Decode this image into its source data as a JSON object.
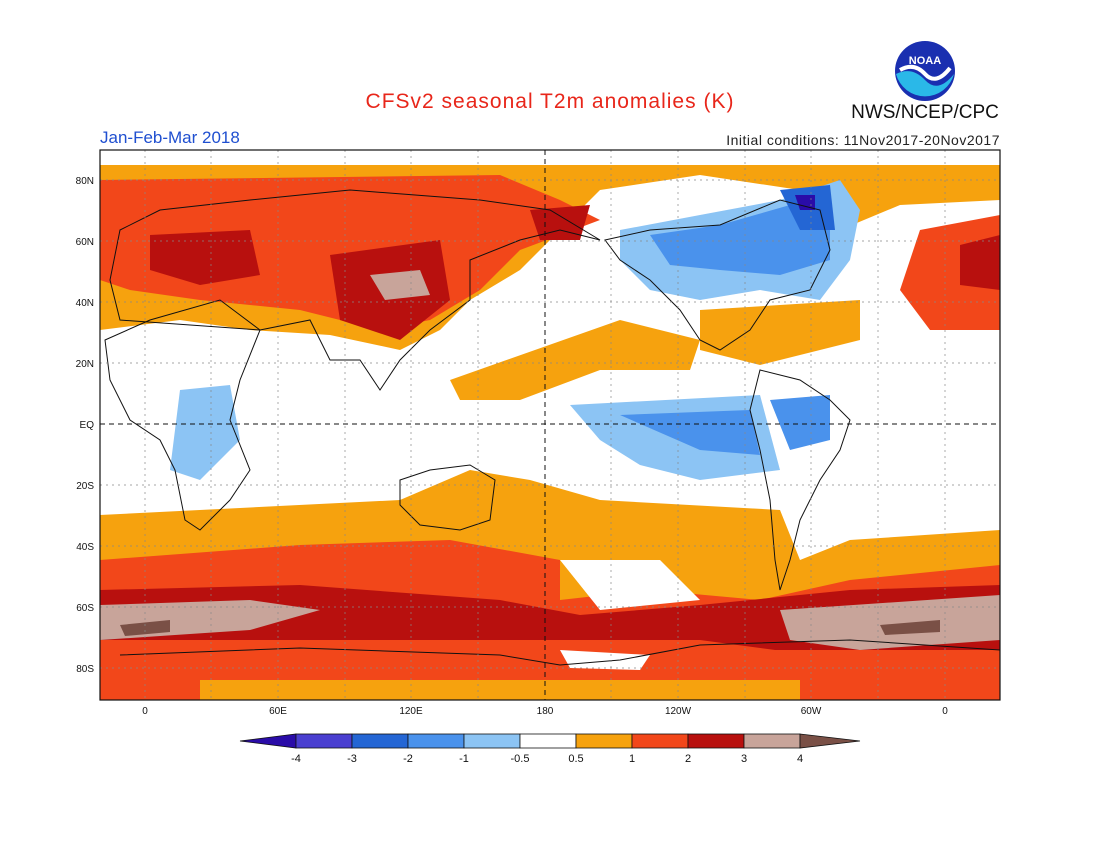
{
  "header": {
    "title": "CFSv2 seasonal T2m anomalies (K)",
    "period": "Jan-Feb-Mar 2018",
    "initial_conditions": "Initial conditions: 11Nov2017-20Nov2017",
    "agency": "NWS/NCEP/CPC",
    "logo_text": "NOAA"
  },
  "map": {
    "lat_labels": [
      "80N",
      "60N",
      "40N",
      "20N",
      "EQ",
      "20S",
      "40S",
      "60S",
      "80S"
    ],
    "lon_labels": [
      "0",
      "60E",
      "120E",
      "180",
      "120W",
      "60W",
      "0"
    ]
  },
  "colorbar": {
    "labels": [
      "-4",
      "-3",
      "-2",
      "-1",
      "-0.5",
      "0.5",
      "1",
      "2",
      "3",
      "4"
    ],
    "colors": [
      "#2a0ca8",
      "#4a3fd0",
      "#2466d4",
      "#4a92ec",
      "#8cc4f4",
      "#ffffff",
      "#f6a20e",
      "#f2471a",
      "#b8100e",
      "#c8a49a",
      "#7a5046"
    ]
  }
}
